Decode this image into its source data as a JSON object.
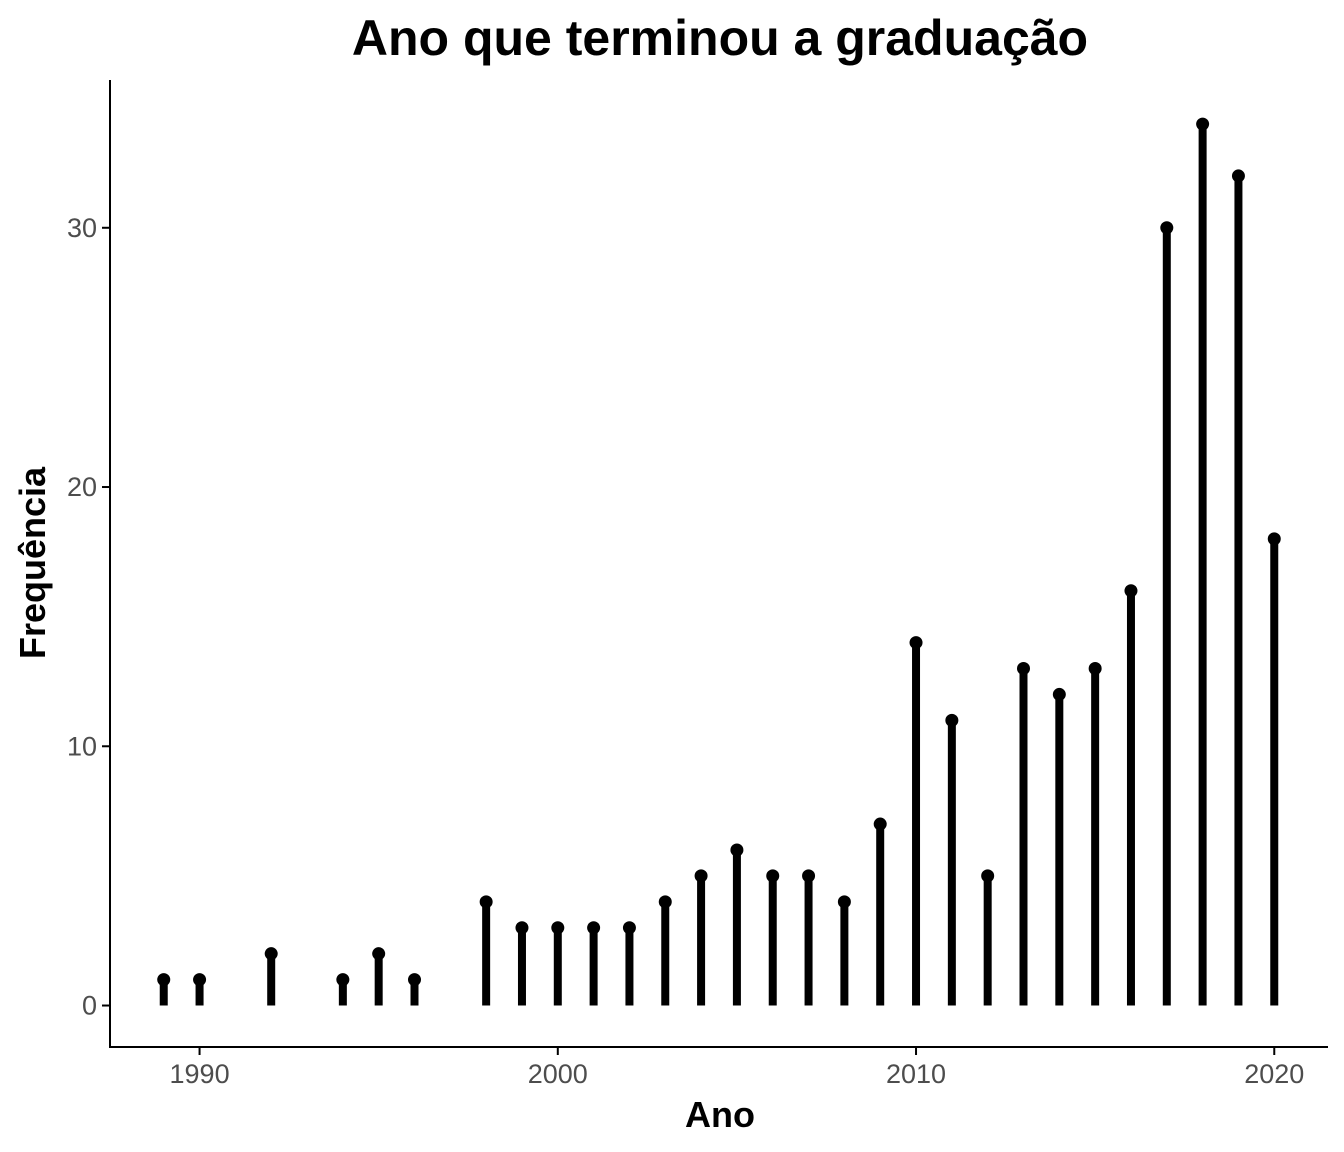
{
  "chart_data": {
    "type": "lollipop",
    "title": "Ano que terminou a graduação",
    "xlabel": "Ano",
    "ylabel": "Frequência",
    "x": [
      1989,
      1990,
      1992,
      1994,
      1995,
      1996,
      1998,
      1999,
      2000,
      2001,
      2002,
      2003,
      2004,
      2005,
      2006,
      2007,
      2008,
      2009,
      2010,
      2011,
      2012,
      2013,
      2014,
      2015,
      2016,
      2017,
      2018,
      2019,
      2020
    ],
    "values": [
      1,
      1,
      2,
      1,
      2,
      1,
      4,
      3,
      3,
      3,
      3,
      4,
      5,
      6,
      5,
      5,
      4,
      7,
      14,
      11,
      5,
      13,
      12,
      13,
      16,
      30,
      34,
      32,
      18
    ],
    "xlim": [
      1987.5,
      2021.5
    ],
    "ylim": [
      -1.6,
      35.7
    ],
    "x_ticks": [
      1990,
      2000,
      2010,
      2020
    ],
    "x_tick_labels": [
      "1990",
      "2000",
      "2010",
      "2020"
    ],
    "y_ticks": [
      0,
      10,
      20,
      30
    ],
    "y_tick_labels": [
      "0",
      "10",
      "20",
      "30"
    ],
    "grid": false,
    "legend": "none",
    "colors": {
      "stem": "#000000",
      "point": "#000000",
      "axis": "#000000",
      "tick_label": "#4d4d4d"
    }
  }
}
